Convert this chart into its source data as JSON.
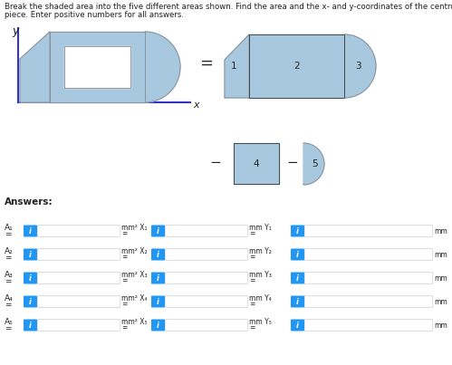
{
  "title_line1": "Break the shaded area into the five different areas shown. Find the area and the x- and y-coordinates of the centroid for each",
  "title_line2": "piece. Enter positive numbers for all answers.",
  "bg_color": "#ffffff",
  "shape_fill": "#a8c8e0",
  "shape_edge": "#888888",
  "axis_color": "#3333cc",
  "text_color": "#222222",
  "answers_label": "Answers:",
  "btn_color": "#2196f3",
  "input_bg": "#f5f5f5",
  "input_border": "#cccccc",
  "subscripts": [
    "1",
    "2",
    "3",
    "4",
    "5"
  ]
}
